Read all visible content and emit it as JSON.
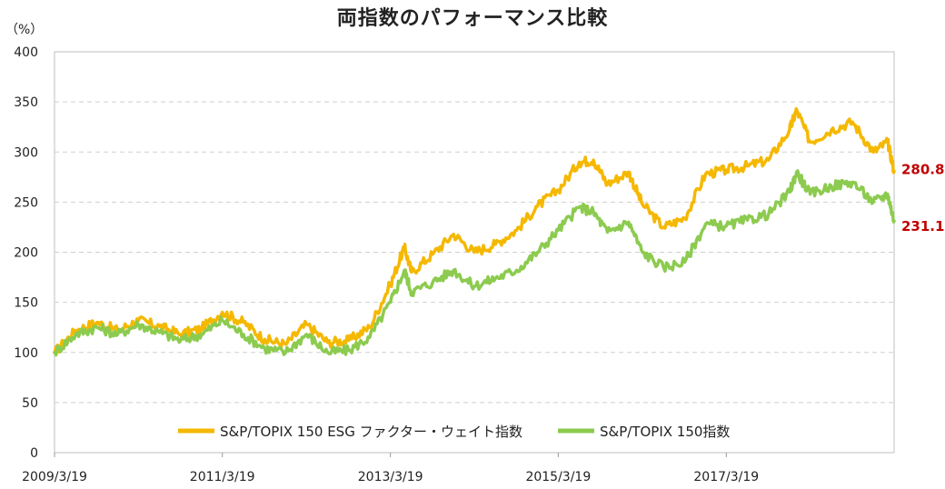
{
  "chart_data": {
    "type": "line",
    "title": "両指数のパフォーマンス比較",
    "y_unit": "（%）",
    "ylim": [
      0,
      400
    ],
    "y_ticks": [
      0,
      50,
      100,
      150,
      200,
      250,
      300,
      350,
      400
    ],
    "x_range": [
      "2009/3/19",
      "2019/3/19"
    ],
    "x_ticks": [
      "2009/3/19",
      "2011/3/19",
      "2013/3/19",
      "2015/3/19",
      "2017/3/19"
    ],
    "grid": true,
    "legend_position": "bottom-center",
    "series": [
      {
        "name": "S&P/TOPIX 150 ESG ファクター・ウェイト指数",
        "color": "#F5B800",
        "end_label": "280.8",
        "points": [
          [
            "2009/3/19",
            100
          ],
          [
            "2009/6/19",
            122
          ],
          [
            "2009/9/19",
            130
          ],
          [
            "2009/12/19",
            122
          ],
          [
            "2010/3/19",
            132
          ],
          [
            "2010/6/19",
            126
          ],
          [
            "2010/9/19",
            118
          ],
          [
            "2010/12/19",
            124
          ],
          [
            "2011/3/19",
            140
          ],
          [
            "2011/6/19",
            130
          ],
          [
            "2011/9/19",
            113
          ],
          [
            "2011/12/19",
            108
          ],
          [
            "2012/3/19",
            128
          ],
          [
            "2012/6/19",
            110
          ],
          [
            "2012/9/19",
            112
          ],
          [
            "2012/12/19",
            125
          ],
          [
            "2013/3/19",
            168
          ],
          [
            "2013/5/19",
            205
          ],
          [
            "2013/6/19",
            180
          ],
          [
            "2013/9/19",
            198
          ],
          [
            "2013/12/19",
            218
          ],
          [
            "2014/3/19",
            200
          ],
          [
            "2014/6/19",
            208
          ],
          [
            "2014/9/19",
            222
          ],
          [
            "2014/12/19",
            246
          ],
          [
            "2015/3/19",
            262
          ],
          [
            "2015/6/19",
            290
          ],
          [
            "2015/8/19",
            292
          ],
          [
            "2015/10/19",
            268
          ],
          [
            "2016/1/19",
            280
          ],
          [
            "2016/3/19",
            248
          ],
          [
            "2016/6/19",
            225
          ],
          [
            "2016/9/19",
            234
          ],
          [
            "2016/12/19",
            278
          ],
          [
            "2017/3/19",
            282
          ],
          [
            "2017/6/19",
            286
          ],
          [
            "2017/9/19",
            292
          ],
          [
            "2017/12/19",
            322
          ],
          [
            "2018/1/19",
            342
          ],
          [
            "2018/3/19",
            310
          ],
          [
            "2018/6/19",
            322
          ],
          [
            "2018/9/19",
            330
          ],
          [
            "2018/12/19",
            300
          ],
          [
            "2019/2/19",
            310
          ],
          [
            "2019/3/19",
            280.8
          ]
        ]
      },
      {
        "name": "S&P/TOPIX 150指数",
        "color": "#8CCB4F",
        "end_label": "231.1",
        "points": [
          [
            "2009/3/19",
            100
          ],
          [
            "2009/6/19",
            118
          ],
          [
            "2009/9/19",
            125
          ],
          [
            "2009/12/19",
            118
          ],
          [
            "2010/3/19",
            128
          ],
          [
            "2010/6/19",
            120
          ],
          [
            "2010/9/19",
            112
          ],
          [
            "2010/12/19",
            118
          ],
          [
            "2011/3/19",
            132
          ],
          [
            "2011/6/19",
            118
          ],
          [
            "2011/9/19",
            104
          ],
          [
            "2011/12/19",
            100
          ],
          [
            "2012/3/19",
            118
          ],
          [
            "2012/6/19",
            100
          ],
          [
            "2012/9/19",
            102
          ],
          [
            "2012/12/19",
            115
          ],
          [
            "2013/3/19",
            150
          ],
          [
            "2013/5/19",
            182
          ],
          [
            "2013/6/19",
            160
          ],
          [
            "2013/9/19",
            170
          ],
          [
            "2013/12/19",
            182
          ],
          [
            "2014/3/19",
            166
          ],
          [
            "2014/6/19",
            174
          ],
          [
            "2014/9/19",
            182
          ],
          [
            "2014/12/19",
            200
          ],
          [
            "2015/3/19",
            222
          ],
          [
            "2015/6/19",
            245
          ],
          [
            "2015/8/19",
            240
          ],
          [
            "2015/10/19",
            220
          ],
          [
            "2016/1/19",
            230
          ],
          [
            "2016/3/19",
            200
          ],
          [
            "2016/6/19",
            185
          ],
          [
            "2016/9/19",
            190
          ],
          [
            "2016/12/19",
            228
          ],
          [
            "2017/3/19",
            226
          ],
          [
            "2017/6/19",
            232
          ],
          [
            "2017/9/19",
            238
          ],
          [
            "2017/12/19",
            260
          ],
          [
            "2018/1/19",
            280
          ],
          [
            "2018/3/19",
            258
          ],
          [
            "2018/6/19",
            266
          ],
          [
            "2018/9/19",
            270
          ],
          [
            "2018/12/19",
            250
          ],
          [
            "2019/2/19",
            258
          ],
          [
            "2019/3/19",
            231.1
          ]
        ]
      }
    ]
  }
}
